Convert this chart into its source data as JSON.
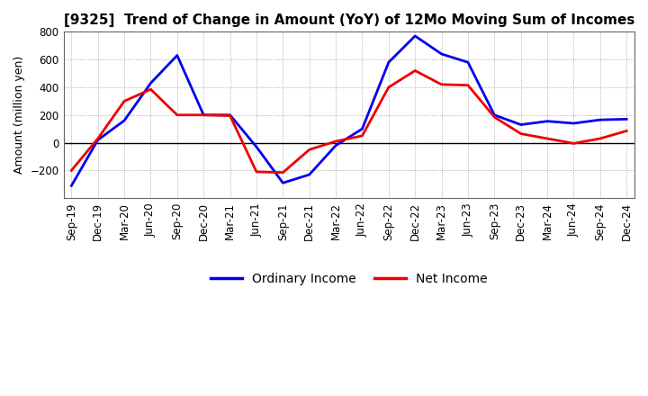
{
  "title": "[9325]  Trend of Change in Amount (YoY) of 12Mo Moving Sum of Incomes",
  "ylabel": "Amount (million yen)",
  "x_labels": [
    "Sep-19",
    "Dec-19",
    "Mar-20",
    "Jun-20",
    "Sep-20",
    "Dec-20",
    "Mar-21",
    "Jun-21",
    "Sep-21",
    "Dec-21",
    "Mar-22",
    "Jun-22",
    "Sep-22",
    "Dec-22",
    "Mar-23",
    "Jun-23",
    "Sep-23",
    "Dec-23",
    "Mar-24",
    "Jun-24",
    "Sep-24",
    "Dec-24"
  ],
  "ordinary_income": [
    -310,
    20,
    160,
    430,
    630,
    200,
    200,
    -30,
    -290,
    -230,
    -20,
    100,
    580,
    770,
    640,
    580,
    200,
    130,
    155,
    140,
    165,
    170
  ],
  "net_income": [
    -200,
    30,
    300,
    385,
    200,
    200,
    195,
    -210,
    -215,
    -50,
    10,
    50,
    400,
    520,
    420,
    415,
    185,
    65,
    30,
    -5,
    30,
    85
  ],
  "ordinary_income_color": "#0000ee",
  "net_income_color": "#ee0000",
  "ylim": [
    -400,
    800
  ],
  "yticks": [
    -200,
    0,
    200,
    400,
    600,
    800
  ],
  "background_color": "#FFFFFF",
  "grid_color": "#999999",
  "legend_labels": [
    "Ordinary Income",
    "Net Income"
  ],
  "line_width": 2.0,
  "title_fontsize": 11,
  "ylabel_fontsize": 9,
  "tick_fontsize": 8.5,
  "legend_fontsize": 10
}
